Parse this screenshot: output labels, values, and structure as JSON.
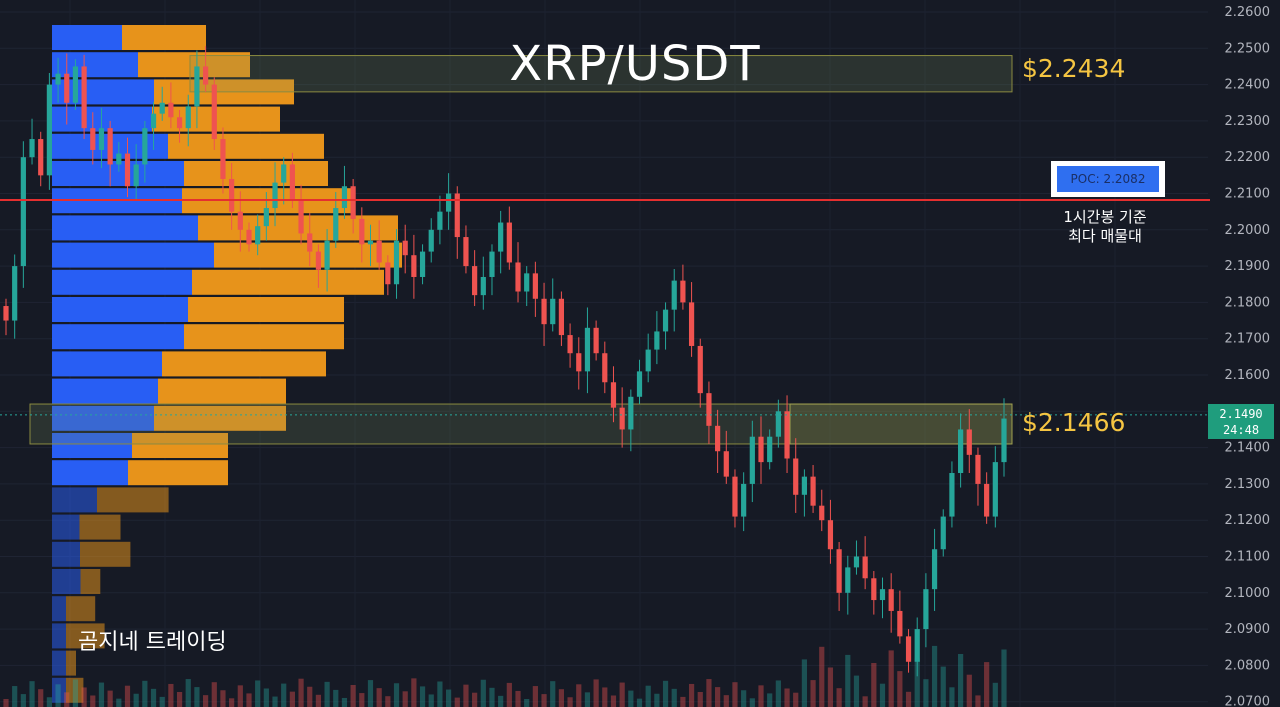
{
  "title": "XRP/USDT",
  "watermark": "곰지네 트레이딩",
  "annotations": {
    "resistance_label": "$2.2434",
    "support_label": "$2.1466",
    "poc_label": "POC: 2.2082",
    "poc_note_line1": "1시간봉 기준",
    "poc_note_line2": "최다 매물대"
  },
  "current_price": {
    "price": "2.1490",
    "countdown": "24:48"
  },
  "colors": {
    "background": "#161a25",
    "up_candle": "#26a69a",
    "down_candle": "#ef5350",
    "poc_line": "#e52f2f",
    "label_gold": "#f5c542",
    "profile_blue": "#2962ff",
    "profile_orange": "#f29a1a"
  },
  "chart_data": {
    "type": "candlestick",
    "ylim": [
      2.07,
      2.26
    ],
    "y_ticks": [
      "2.2600",
      "2.2500",
      "2.2400",
      "2.2300",
      "2.2200",
      "2.2100",
      "2.2000",
      "2.1900",
      "2.1800",
      "2.1700",
      "2.1600",
      "2.1500",
      "2.1400",
      "2.1300",
      "2.1200",
      "2.1100",
      "2.1000",
      "2.0900",
      "2.0800",
      "2.0700"
    ],
    "poc": 2.2082,
    "zones": [
      {
        "name": "resistance",
        "low": 2.238,
        "high": 2.248
      },
      {
        "name": "support",
        "low": 2.141,
        "high": 2.152
      }
    ],
    "closes": [
      2.175,
      2.19,
      2.22,
      2.225,
      2.215,
      2.24,
      2.243,
      2.235,
      2.245,
      2.228,
      2.222,
      2.228,
      2.218,
      2.221,
      2.212,
      2.218,
      2.228,
      2.232,
      2.235,
      2.231,
      2.228,
      2.234,
      2.245,
      2.24,
      2.225,
      2.214,
      2.205,
      2.2,
      2.196,
      2.201,
      2.206,
      2.213,
      2.218,
      2.208,
      2.199,
      2.194,
      2.189,
      2.197,
      2.206,
      2.212,
      2.203,
      2.196,
      2.197,
      2.191,
      2.185,
      2.197,
      2.193,
      2.187,
      2.194,
      2.2,
      2.205,
      2.21,
      2.198,
      2.19,
      2.182,
      2.187,
      2.194,
      2.202,
      2.191,
      2.183,
      2.188,
      2.181,
      2.174,
      2.181,
      2.171,
      2.166,
      2.161,
      2.173,
      2.166,
      2.158,
      2.151,
      2.145,
      2.154,
      2.161,
      2.167,
      2.172,
      2.178,
      2.186,
      2.18,
      2.168,
      2.155,
      2.146,
      2.139,
      2.132,
      2.121,
      2.13,
      2.143,
      2.136,
      2.143,
      2.15,
      2.137,
      2.127,
      2.132,
      2.124,
      2.12,
      2.112,
      2.1,
      2.107,
      2.11,
      2.104,
      2.098,
      2.101,
      2.095,
      2.088,
      2.081,
      2.09,
      2.101,
      2.112,
      2.121,
      2.133,
      2.145,
      2.138,
      2.13,
      2.121,
      2.136,
      2.148
    ]
  }
}
